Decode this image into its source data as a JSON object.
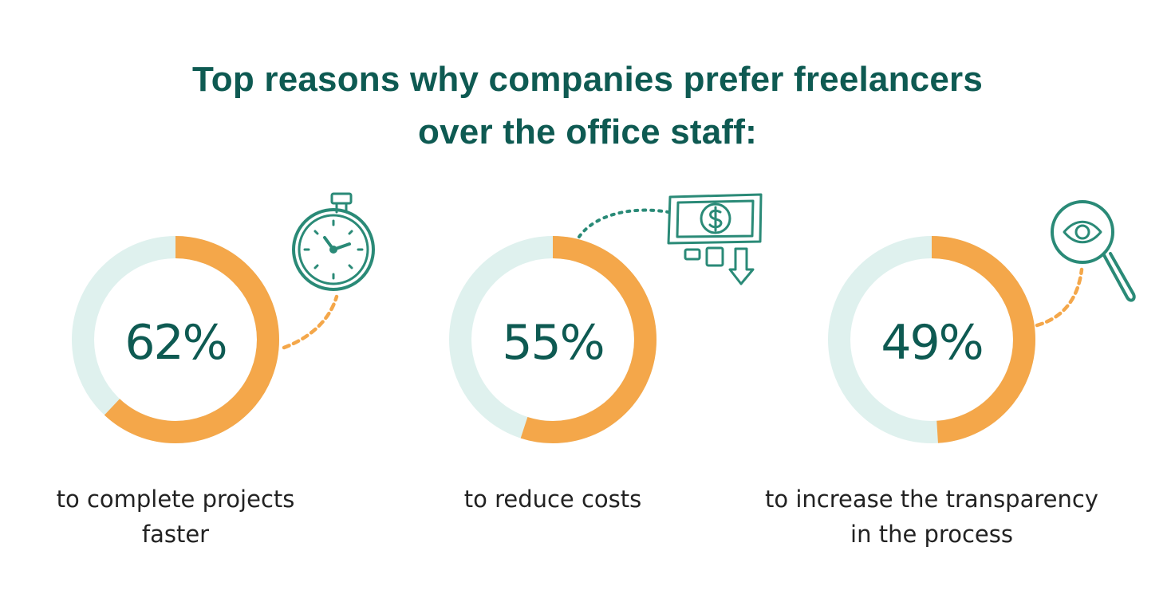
{
  "title": {
    "line1": "Top reasons why companies prefer freelancers",
    "line2": "over the office staff:"
  },
  "colors": {
    "title": "#0e5a52",
    "value": "#f4a74a",
    "track": "#dff1ee",
    "icon": "#2a8a77",
    "caption": "#222222"
  },
  "chart_data": {
    "type": "donut",
    "items": [
      {
        "value": 62,
        "label": "62%",
        "caption_line1": "to complete projects",
        "caption_line2": "faster",
        "icon": "stopwatch-icon"
      },
      {
        "value": 55,
        "label": "55%",
        "caption_line1": "to reduce costs",
        "caption_line2": "",
        "icon": "money-bill-icon"
      },
      {
        "value": 49,
        "label": "49%",
        "caption_line1": "to increase the transparency",
        "caption_line2": "in the process",
        "icon": "magnifier-eye-icon"
      }
    ]
  }
}
